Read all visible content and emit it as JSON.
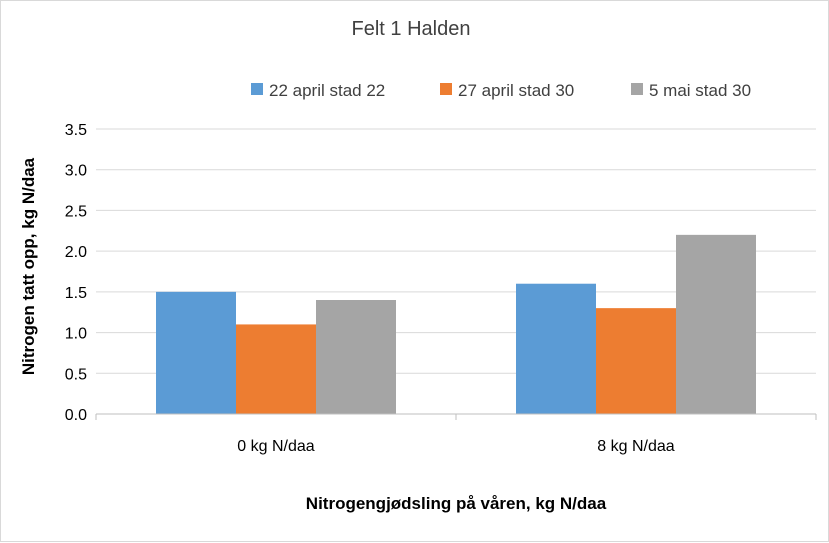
{
  "chart_data": {
    "type": "bar",
    "title": "Felt 1 Halden",
    "xlabel": "Nitrogengjødsling på våren, kg N/daa",
    "ylabel": "Nitrogen tatt opp, kg N/daa",
    "categories": [
      "0 kg N/daa",
      "8 kg N/daa"
    ],
    "series": [
      {
        "name": "22 april stad 22",
        "values": [
          1.5,
          1.6
        ],
        "color": "#5b9bd5"
      },
      {
        "name": "27 april stad 30",
        "values": [
          1.1,
          1.3
        ],
        "color": "#ed7d31"
      },
      {
        "name": "5 mai stad 30",
        "values": [
          1.4,
          2.2
        ],
        "color": "#a5a5a5"
      }
    ],
    "ylim": [
      0,
      3.5
    ],
    "yticks": [
      "0.0",
      "0.5",
      "1.0",
      "1.5",
      "2.0",
      "2.5",
      "3.0",
      "3.5"
    ],
    "grid": true,
    "legend_position": "top"
  }
}
